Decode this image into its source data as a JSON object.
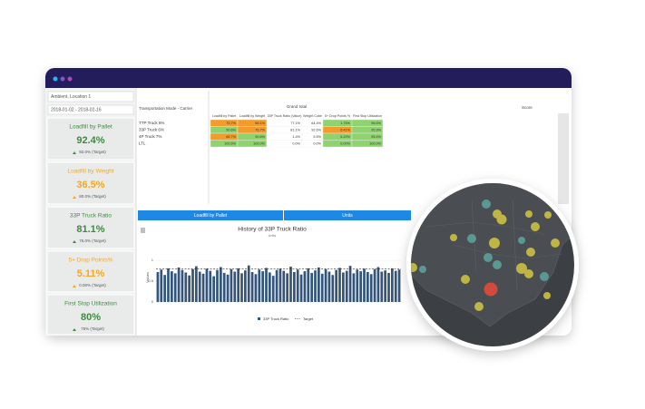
{
  "sidebar": {
    "location": "Ambient, Location 1",
    "date_range": "2018-01-02 - 2018-02-16",
    "kpis": [
      {
        "title": "Loadfill by Pallet",
        "value": "92.4%",
        "target": "92.0% (Target)",
        "color": "#3d8b3d"
      },
      {
        "title": "Loadfill by Weight",
        "value": "36.5%",
        "target": "80.0% (Target)",
        "color": "#f5a623"
      },
      {
        "title": "33P Truck Ratio",
        "value": "81.1%",
        "target": "75.0% (Target)",
        "color": "#3d8b3d"
      },
      {
        "title": "5+ Drop Points%",
        "value": "5.11%",
        "target": "0.00% (Target)",
        "color": "#f5a623"
      },
      {
        "title": "First Stop Utilization",
        "value": "80%",
        "target": "75% (Target)",
        "color": "#3d8b3d"
      }
    ]
  },
  "table": {
    "row_header": "Transportation Mode - Carrier",
    "group": "Grand total",
    "columns": [
      "Loadfill by Pallet",
      "Loadfill by Weight",
      "33P Truck Ratio (Value)",
      "Weight Cube",
      "5+ Drop Points %",
      "First Stop Utilization"
    ],
    "rows": [
      {
        "label": "TTP Truck 6%",
        "cells": [
          "75.7%",
          "65.1%",
          "77.1%",
          "64.4%",
          "1.76%",
          "96.6%"
        ]
      },
      {
        "label": "33P Truck 6%",
        "cells": [
          "90.6%",
          "76.7%",
          "81.1%",
          "92.6%",
          "6.41%",
          "95.3%"
        ]
      },
      {
        "label": "4P Truck 7%",
        "cells": [
          "66.7%",
          "90.6%",
          "1.4%",
          "5.5%",
          "5.22%",
          "95.4%"
        ]
      },
      {
        "label": "LTL",
        "cells": [
          "100.6%",
          "100.0%",
          "0.0%",
          "0.0%",
          "0.00%",
          "100.0%"
        ]
      }
    ]
  },
  "toolbar": {
    "score": "Score"
  },
  "buttons": [
    "Loadfill by Pallet",
    "Units"
  ],
  "chart_data": {
    "type": "bar",
    "title": "History of 33P Truck Ratio",
    "subtitle": "Units",
    "y_label": "Values",
    "series": [
      {
        "name": "33P Truck Ratio",
        "color": "#34557a",
        "values": [
          0.72,
          0.78,
          0.65,
          0.81,
          0.74,
          0.69,
          0.83,
          0.77,
          0.71,
          0.64,
          0.79,
          0.86,
          0.73,
          0.68,
          0.8,
          0.75,
          0.62,
          0.77,
          0.84,
          0.7,
          0.66,
          0.79,
          0.73,
          0.81,
          0.69,
          0.76,
          0.88,
          0.72,
          0.67,
          0.78,
          0.74,
          0.82,
          0.71,
          0.63,
          0.77,
          0.8,
          0.75,
          0.69,
          0.85,
          0.72,
          0.78,
          0.66,
          0.74,
          0.81,
          0.7,
          0.76,
          0.83,
          0.68,
          0.79,
          0.73,
          0.65,
          0.77,
          0.82,
          0.71,
          0.75,
          0.87,
          0.69,
          0.78,
          0.74,
          0.8,
          0.72,
          0.67,
          0.79,
          0.84,
          0.73,
          0.76,
          0.7,
          0.81,
          0.75,
          0.78
        ]
      }
    ],
    "target": {
      "name": "Target",
      "value": 0.8,
      "color": "#333333"
    },
    "ylim": [
      0,
      1.2
    ],
    "yticks": [
      0,
      0.5,
      1
    ]
  }
}
